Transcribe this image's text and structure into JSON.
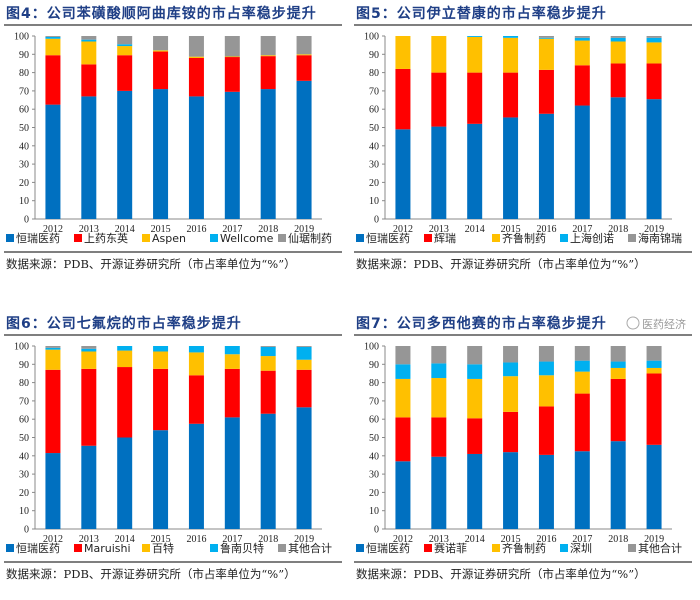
{
  "colors": [
    "#0070c0",
    "#ff0000",
    "#ffc000",
    "#00b0f0",
    "#969696"
  ],
  "chart_data": [
    {
      "type": "bar",
      "stacked": true,
      "title": "图4：公司苯磺酸顺阿曲库铵的市占率稳步提升",
      "source": "数据来源：PDB、开源证券研究所（市占率单位为“%”）",
      "categories": [
        "2012",
        "2013",
        "2014",
        "2015",
        "2016",
        "2017",
        "2018",
        "2019"
      ],
      "ylim": [
        0,
        100
      ],
      "yticks": [
        "0",
        "10",
        "20",
        "30",
        "40",
        "50",
        "60",
        "70",
        "80",
        "90",
        "100"
      ],
      "legend_position": "bottom",
      "series": [
        {
          "name": "恒瑞医药",
          "values": [
            62.5,
            67,
            70,
            71,
            67,
            69.5,
            71,
            75.5
          ]
        },
        {
          "name": "上药东英",
          "values": [
            27,
            17.5,
            19.5,
            20.5,
            21,
            19,
            18,
            14
          ]
        },
        {
          "name": "Aspen",
          "values": [
            9,
            12.5,
            5,
            0.7,
            0.7,
            0.3,
            0.5,
            0.5
          ]
        },
        {
          "name": "Wellcome",
          "values": [
            1,
            1,
            1,
            0.1,
            0,
            0,
            0,
            0
          ]
        },
        {
          "name": "仙琚制药",
          "values": [
            0.5,
            2,
            4.5,
            7.7,
            11.3,
            11.2,
            10.5,
            10
          ]
        }
      ]
    },
    {
      "type": "bar",
      "stacked": true,
      "title": "图5：公司伊立替康的市占率稳步提升",
      "source": "数据来源：PDB、开源证券研究所（市占率单位为“%”）",
      "categories": [
        "2012",
        "2013",
        "2014",
        "2015",
        "2016",
        "2017",
        "2018",
        "2019"
      ],
      "ylim": [
        0,
        100
      ],
      "yticks": [
        "0",
        "10",
        "20",
        "30",
        "40",
        "50",
        "60",
        "70",
        "80",
        "90",
        "100"
      ],
      "legend_position": "bottom",
      "series": [
        {
          "name": "恒瑞医药",
          "values": [
            49,
            50.5,
            52,
            55.5,
            57.5,
            62,
            66.5,
            65.5
          ]
        },
        {
          "name": "辉瑞",
          "values": [
            33,
            29.5,
            28,
            24.5,
            24,
            22,
            18.5,
            19.5
          ]
        },
        {
          "name": "齐鲁制药",
          "values": [
            18,
            20,
            19.5,
            19,
            17,
            13.5,
            12,
            11.5
          ]
        },
        {
          "name": "上海创诺",
          "values": [
            0,
            0,
            0.5,
            1,
            0.5,
            1.5,
            2,
            2.5
          ]
        },
        {
          "name": "海南锦瑞",
          "values": [
            0,
            0,
            0,
            0,
            1,
            1,
            1,
            1
          ]
        }
      ]
    },
    {
      "type": "bar",
      "stacked": true,
      "title": "图6：公司七氟烷的市占率稳步提升",
      "source": "数据来源：PDB、开源证券研究所（市占率单位为“%”）",
      "categories": [
        "2012",
        "2013",
        "2014",
        "2015",
        "2016",
        "2017",
        "2018",
        "2019"
      ],
      "ylim": [
        0,
        100
      ],
      "yticks": [
        "0",
        "10",
        "20",
        "30",
        "40",
        "50",
        "60",
        "70",
        "80",
        "90",
        "100"
      ],
      "legend_position": "bottom",
      "series": [
        {
          "name": "恒瑞医药",
          "values": [
            41.5,
            45.5,
            50,
            54,
            57.5,
            61,
            63,
            66.5
          ]
        },
        {
          "name": "Maruishi",
          "values": [
            45.5,
            42,
            38.5,
            33.5,
            26.5,
            26.5,
            23.5,
            20.5
          ]
        },
        {
          "name": "百特",
          "values": [
            11,
            9.5,
            9,
            9.5,
            12.5,
            8,
            8,
            5.5
          ]
        },
        {
          "name": "鲁南贝特",
          "values": [
            1,
            1.5,
            2.5,
            3,
            3.5,
            4.5,
            5,
            7
          ]
        },
        {
          "name": "其他合计",
          "values": [
            1,
            1.5,
            0,
            0,
            0,
            0,
            0.5,
            0.5
          ]
        }
      ]
    },
    {
      "type": "bar",
      "stacked": true,
      "title": "图7：公司多西他赛的市占率稳步提升",
      "source": "数据来源：PDB、开源证券研究所（市占率单位为“%”）",
      "categories": [
        "2012",
        "2013",
        "2014",
        "2015",
        "2016",
        "2017",
        "2018",
        "2019"
      ],
      "ylim": [
        0,
        100
      ],
      "yticks": [
        "0",
        "10",
        "20",
        "30",
        "40",
        "50",
        "60",
        "70",
        "80",
        "90",
        "100"
      ],
      "legend_position": "bottom",
      "watermark": "医药经济",
      "series": [
        {
          "name": "恒瑞医药",
          "values": [
            37,
            39.5,
            41,
            42,
            40.5,
            42.5,
            48,
            46
          ]
        },
        {
          "name": "赛诺菲",
          "values": [
            24,
            21.5,
            19.5,
            22,
            26.5,
            31.5,
            34,
            39
          ]
        },
        {
          "name": "齐鲁制药",
          "values": [
            21,
            21.5,
            21.5,
            19.5,
            17,
            12,
            6,
            3
          ]
        },
        {
          "name": "深圳",
          "values": [
            8,
            8,
            8,
            7.5,
            7.5,
            6,
            3.5,
            4
          ]
        },
        {
          "name": "其他合计",
          "values": [
            10,
            9.5,
            10,
            9,
            8.5,
            8,
            8.5,
            8
          ]
        }
      ]
    }
  ]
}
